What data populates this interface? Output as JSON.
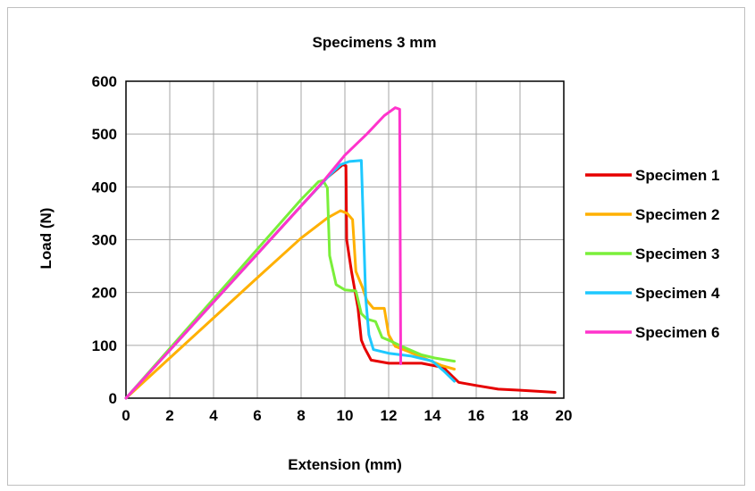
{
  "chart_data": {
    "type": "line",
    "title": "Specimens 3 mm",
    "xlabel": "Extension (mm)",
    "ylabel": "Load (N)",
    "xlim": [
      0,
      20
    ],
    "ylim": [
      0,
      600
    ],
    "xticks": [
      "0",
      "2",
      "4",
      "6",
      "8",
      "10",
      "12",
      "14",
      "16",
      "18",
      "20"
    ],
    "yticks": [
      "0",
      "100",
      "200",
      "300",
      "400",
      "500",
      "600"
    ],
    "grid": true,
    "legend_position": "right",
    "series": [
      {
        "name": "Specimen 1",
        "color": "#e60000",
        "points": [
          [
            0,
            0
          ],
          [
            2,
            91
          ],
          [
            4,
            182
          ],
          [
            6,
            273
          ],
          [
            8,
            364
          ],
          [
            9.2,
            418
          ],
          [
            9.9,
            442
          ],
          [
            10.05,
            440
          ],
          [
            10.08,
            300
          ],
          [
            10.3,
            240
          ],
          [
            10.6,
            170
          ],
          [
            10.75,
            110
          ],
          [
            10.9,
            95
          ],
          [
            11.2,
            72
          ],
          [
            12,
            66
          ],
          [
            13.5,
            66
          ],
          [
            14.5,
            58
          ],
          [
            15.2,
            30
          ],
          [
            16,
            24
          ],
          [
            17,
            17
          ],
          [
            18,
            15
          ],
          [
            19.2,
            12
          ],
          [
            19.6,
            11
          ]
        ]
      },
      {
        "name": "Specimen 2",
        "color": "#ffb000",
        "points": [
          [
            0,
            0
          ],
          [
            2,
            76
          ],
          [
            4,
            152
          ],
          [
            6,
            228
          ],
          [
            8,
            303
          ],
          [
            9.2,
            341
          ],
          [
            9.8,
            355
          ],
          [
            10.1,
            350
          ],
          [
            10.35,
            338
          ],
          [
            10.5,
            240
          ],
          [
            10.8,
            210
          ],
          [
            11.0,
            185
          ],
          [
            11.3,
            170
          ],
          [
            11.8,
            170
          ],
          [
            12.0,
            120
          ],
          [
            12.3,
            98
          ],
          [
            12.8,
            90
          ],
          [
            14.4,
            62
          ],
          [
            15.0,
            55
          ]
        ]
      },
      {
        "name": "Specimen 3",
        "color": "#7aef3a",
        "points": [
          [
            0,
            0
          ],
          [
            2,
            94
          ],
          [
            4,
            188
          ],
          [
            6,
            282
          ],
          [
            8,
            376
          ],
          [
            8.8,
            410
          ],
          [
            9.0,
            412
          ],
          [
            9.2,
            398
          ],
          [
            9.3,
            270
          ],
          [
            9.6,
            215
          ],
          [
            10,
            205
          ],
          [
            10.5,
            203
          ],
          [
            10.75,
            160
          ],
          [
            11,
            150
          ],
          [
            11.4,
            145
          ],
          [
            11.7,
            115
          ],
          [
            12.1,
            108
          ],
          [
            12.6,
            98
          ],
          [
            13.5,
            82
          ],
          [
            14.1,
            76
          ],
          [
            15.0,
            70
          ]
        ]
      },
      {
        "name": "Specimen 4",
        "color": "#1ec8ff",
        "points": [
          [
            0,
            0
          ],
          [
            2,
            91
          ],
          [
            4,
            182
          ],
          [
            6,
            273
          ],
          [
            8,
            364
          ],
          [
            9.2,
            418
          ],
          [
            9.8,
            442
          ],
          [
            10.2,
            448
          ],
          [
            10.75,
            450
          ],
          [
            10.95,
            190
          ],
          [
            11.1,
            120
          ],
          [
            11.3,
            92
          ],
          [
            12.0,
            85
          ],
          [
            13.0,
            80
          ],
          [
            14.0,
            70
          ],
          [
            14.5,
            52
          ],
          [
            15.0,
            32
          ]
        ]
      },
      {
        "name": "Specimen 6",
        "color": "#ff33cc",
        "points": [
          [
            0,
            0
          ],
          [
            2,
            91
          ],
          [
            4,
            182
          ],
          [
            6,
            273
          ],
          [
            8,
            364
          ],
          [
            9,
            410
          ],
          [
            10,
            460
          ],
          [
            11,
            500
          ],
          [
            11.8,
            535
          ],
          [
            12.3,
            550
          ],
          [
            12.5,
            547
          ],
          [
            12.55,
            65
          ]
        ]
      }
    ]
  }
}
